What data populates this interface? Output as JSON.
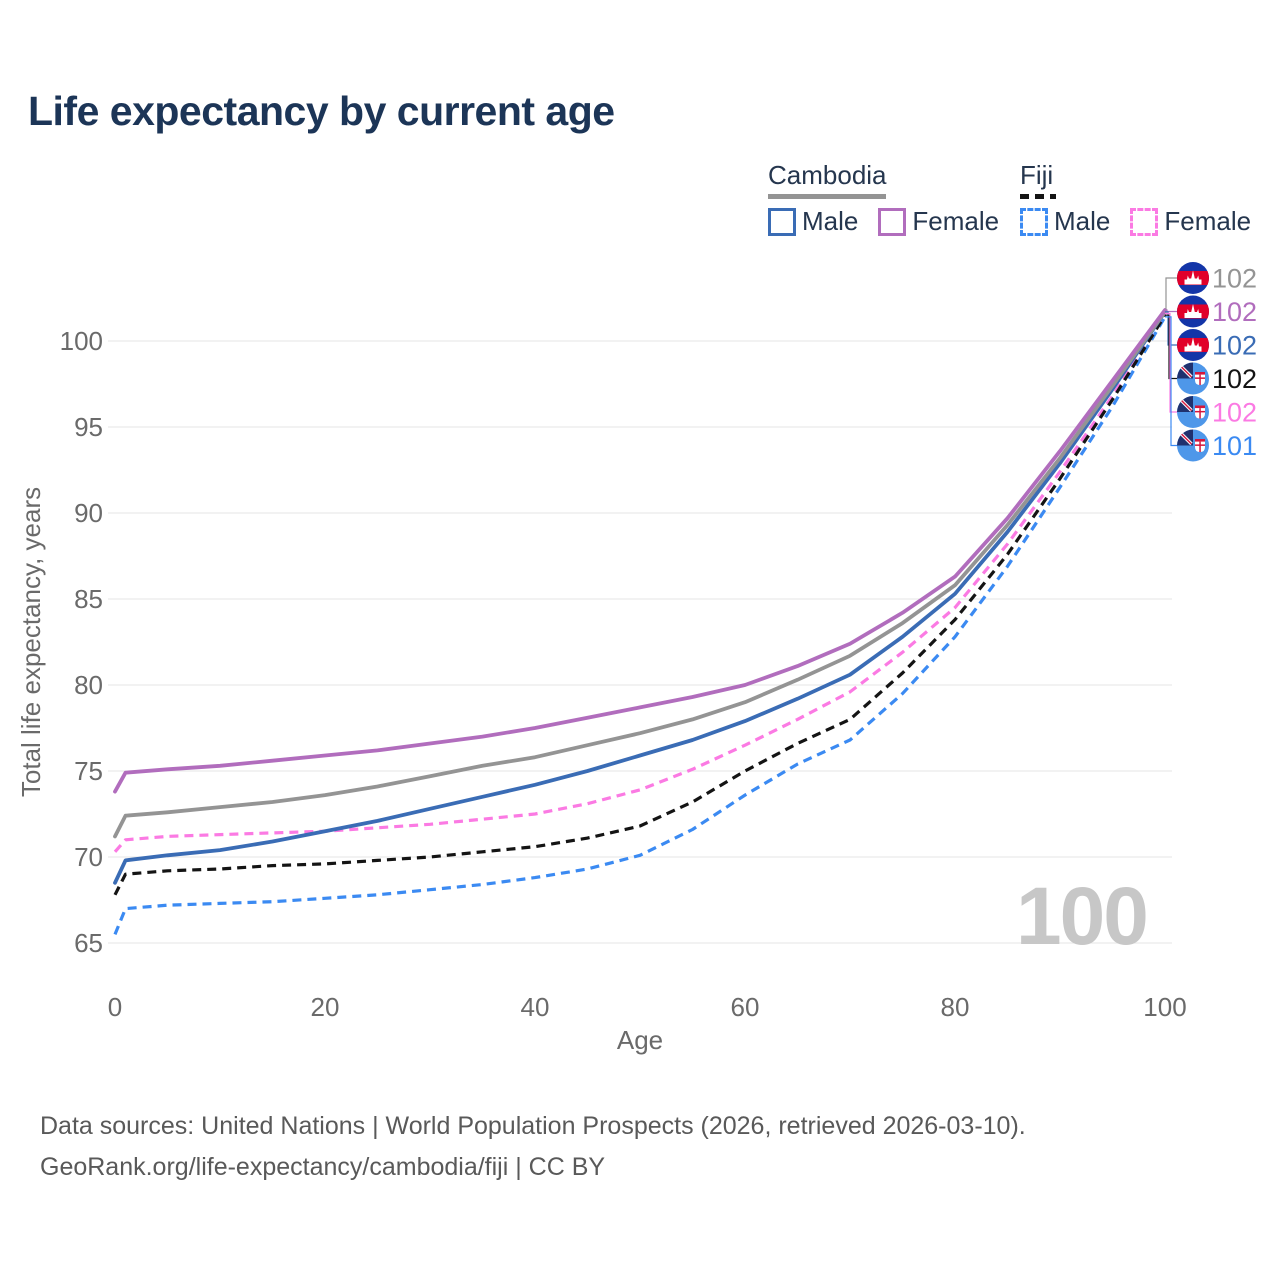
{
  "title": "Life expectancy by current age",
  "legend": {
    "groups": [
      {
        "label": "Cambodia",
        "line_style": "solid",
        "line_color": "#949494",
        "items": [
          {
            "label": "Male",
            "color": "#3a6cb5",
            "dashed": false
          },
          {
            "label": "Female",
            "color": "#b16dbd",
            "dashed": false
          }
        ]
      },
      {
        "label": "Fiji",
        "line_style": "dashed",
        "line_color": "#141414",
        "items": [
          {
            "label": "Male",
            "color": "#3b8af2",
            "dashed": true
          },
          {
            "label": "Female",
            "color": "#fb7ae3",
            "dashed": true
          }
        ]
      }
    ]
  },
  "chart_data": {
    "type": "line",
    "title": "Life expectancy by current age",
    "xlabel": "Age",
    "ylabel": "Total life expectancy, years",
    "xlim": [
      0,
      100
    ],
    "ylim": [
      65,
      102
    ],
    "x_ticks": [
      "0",
      "20",
      "40",
      "60",
      "80",
      "100"
    ],
    "y_ticks": [
      "65",
      "70",
      "75",
      "80",
      "85",
      "90",
      "95",
      "100"
    ],
    "grid": true,
    "legend_position": "top-right",
    "ages": [
      0,
      1,
      5,
      10,
      15,
      20,
      25,
      30,
      35,
      40,
      45,
      50,
      55,
      60,
      65,
      70,
      75,
      80,
      85,
      90,
      95,
      100
    ],
    "series": [
      {
        "id": "cambodia-combined",
        "name": "Cambodia",
        "country": "Cambodia",
        "flag": "cambodia",
        "color": "#949494",
        "dashed": false,
        "end_label": "102",
        "values": [
          71.2,
          72.4,
          72.6,
          72.9,
          73.2,
          73.6,
          74.1,
          74.7,
          75.3,
          75.8,
          76.5,
          77.2,
          78.0,
          79.0,
          80.3,
          81.7,
          83.6,
          85.8,
          89.3,
          93.2,
          97.4,
          101.7
        ]
      },
      {
        "id": "cambodia-female",
        "name": "Cambodia Female",
        "country": "Cambodia",
        "flag": "cambodia",
        "color": "#b16dbd",
        "dashed": false,
        "end_label": "102",
        "values": [
          73.8,
          74.9,
          75.1,
          75.3,
          75.6,
          75.9,
          76.2,
          76.6,
          77.0,
          77.5,
          78.1,
          78.7,
          79.3,
          80.0,
          81.1,
          82.4,
          84.2,
          86.3,
          89.7,
          93.6,
          97.7,
          101.8
        ]
      },
      {
        "id": "cambodia-male",
        "name": "Cambodia Male",
        "country": "Cambodia",
        "flag": "cambodia",
        "color": "#3a6cb5",
        "dashed": false,
        "end_label": "102",
        "values": [
          68.5,
          69.8,
          70.1,
          70.4,
          70.9,
          71.5,
          72.1,
          72.8,
          73.5,
          74.2,
          75.0,
          75.9,
          76.8,
          77.9,
          79.2,
          80.6,
          82.8,
          85.3,
          88.9,
          92.9,
          97.2,
          101.7
        ]
      },
      {
        "id": "fiji-combined",
        "name": "Fiji",
        "country": "Fiji",
        "flag": "fiji",
        "color": "#141414",
        "dashed": true,
        "end_label": "102",
        "values": [
          67.8,
          69.0,
          69.2,
          69.3,
          69.5,
          69.6,
          69.8,
          70.0,
          70.3,
          70.6,
          71.1,
          71.8,
          73.2,
          75.0,
          76.6,
          78.0,
          80.7,
          83.8,
          87.6,
          92.0,
          96.6,
          101.5
        ]
      },
      {
        "id": "fiji-female",
        "name": "Fiji Female",
        "country": "Fiji",
        "flag": "fiji",
        "color": "#fb7ae3",
        "dashed": true,
        "end_label": "102",
        "values": [
          70.3,
          71.0,
          71.2,
          71.3,
          71.4,
          71.5,
          71.7,
          71.9,
          72.2,
          72.5,
          73.1,
          73.9,
          75.1,
          76.5,
          78.0,
          79.6,
          81.9,
          84.5,
          88.2,
          92.4,
          96.8,
          101.6
        ]
      },
      {
        "id": "fiji-male",
        "name": "Fiji Male",
        "country": "Fiji",
        "flag": "fiji",
        "color": "#3b8af2",
        "dashed": true,
        "end_label": "101",
        "values": [
          65.5,
          67.0,
          67.2,
          67.3,
          67.4,
          67.6,
          67.8,
          68.1,
          68.4,
          68.8,
          69.3,
          70.1,
          71.6,
          73.6,
          75.4,
          76.8,
          79.5,
          82.8,
          86.9,
          91.5,
          96.2,
          101.4
        ]
      }
    ]
  },
  "watermark": "100",
  "footer": {
    "line1": "Data sources: United Nations | World Population Prospects (2026, retrieved 2026-03-10).",
    "line2": "GeoRank.org/life-expectancy/cambodia/fiji | CC BY"
  }
}
